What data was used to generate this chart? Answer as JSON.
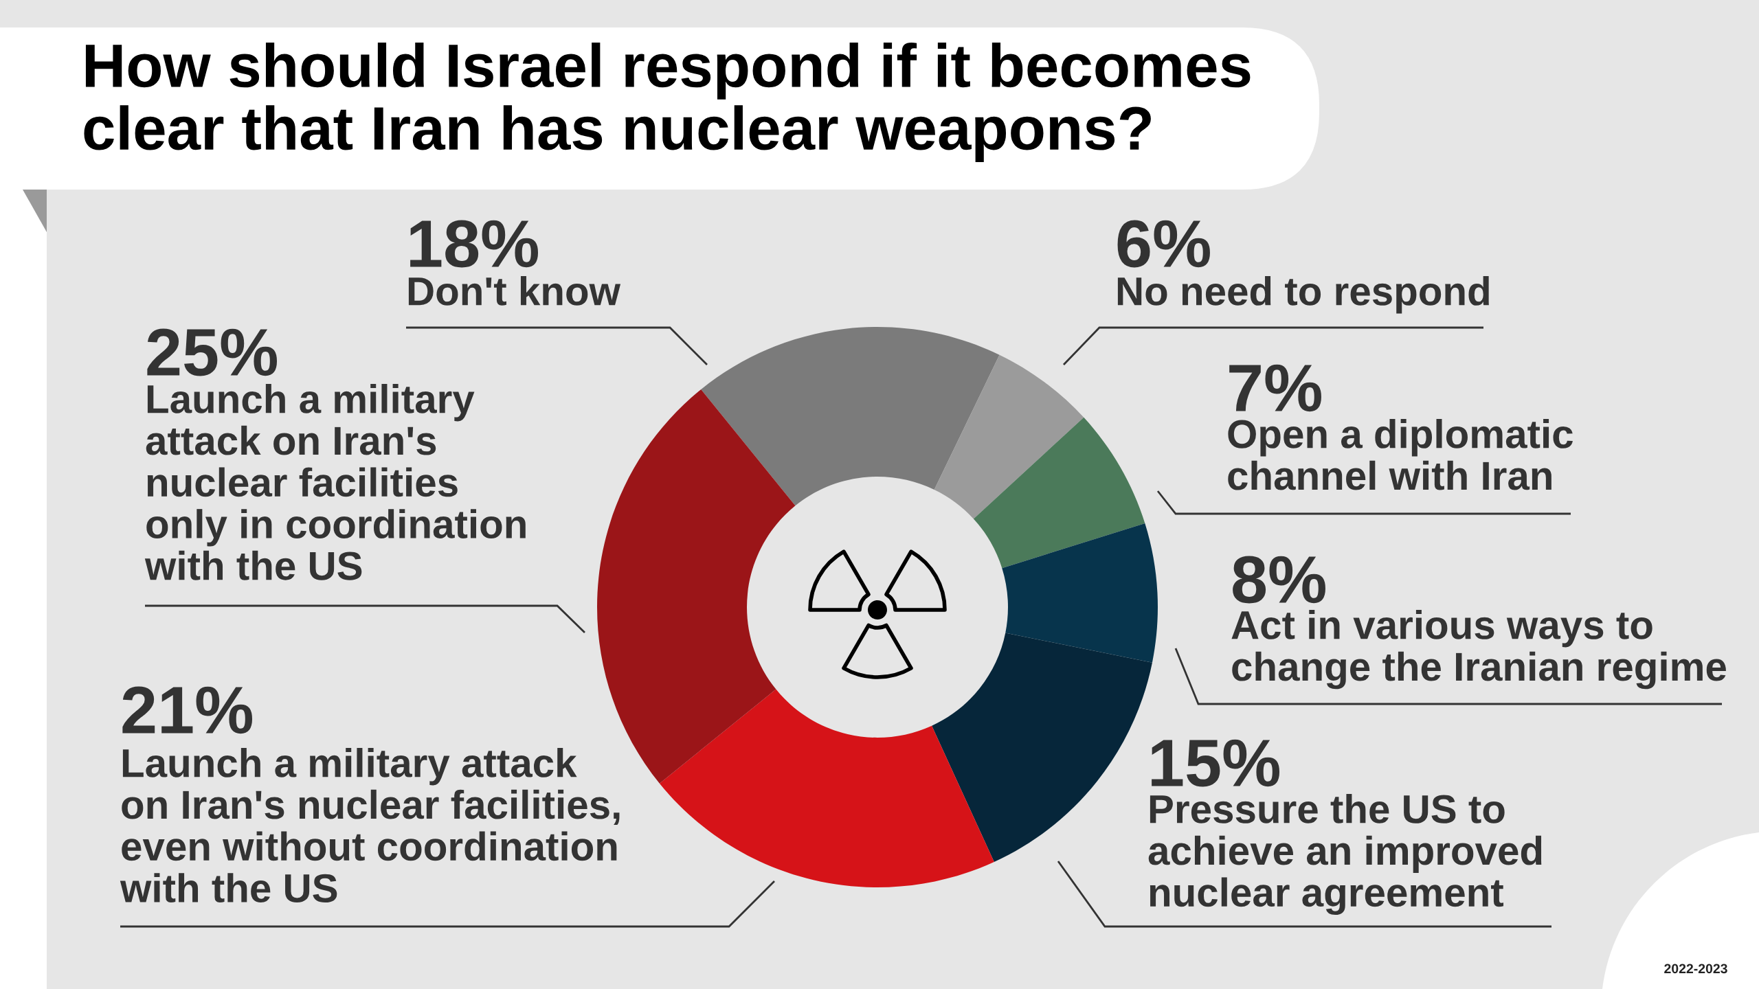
{
  "chart_data": {
    "type": "donut",
    "title": "How should Israel respond if it becomes\nclear that Iran has nuclear weapons?",
    "categories": [
      "Don't know",
      "No need to respond",
      "Open a diplomatic\nchannel with Iran",
      "Act in various ways to\nchange the Iranian regime",
      "Pressure the US to\nachieve an improved\nnuclear agreement",
      "Launch a military attack\non Iran's nuclear facilities,\neven without coordination\nwith the US",
      "Launch a military\nattack on Iran's\nnuclear facilities\nonly in coordination\nwith the US"
    ],
    "values": [
      18,
      6,
      7,
      8,
      15,
      21,
      25
    ],
    "colors": [
      "#7b7b7b",
      "#9b9b9b",
      "#4b7a5a",
      "#07344c",
      "#06263a",
      "#d61318",
      "#9b1518"
    ],
    "value_labels": [
      "18%",
      "6%",
      "7%",
      "8%",
      "15%",
      "21%",
      "25%"
    ],
    "annotations": [
      "2022-2023"
    ]
  }
}
